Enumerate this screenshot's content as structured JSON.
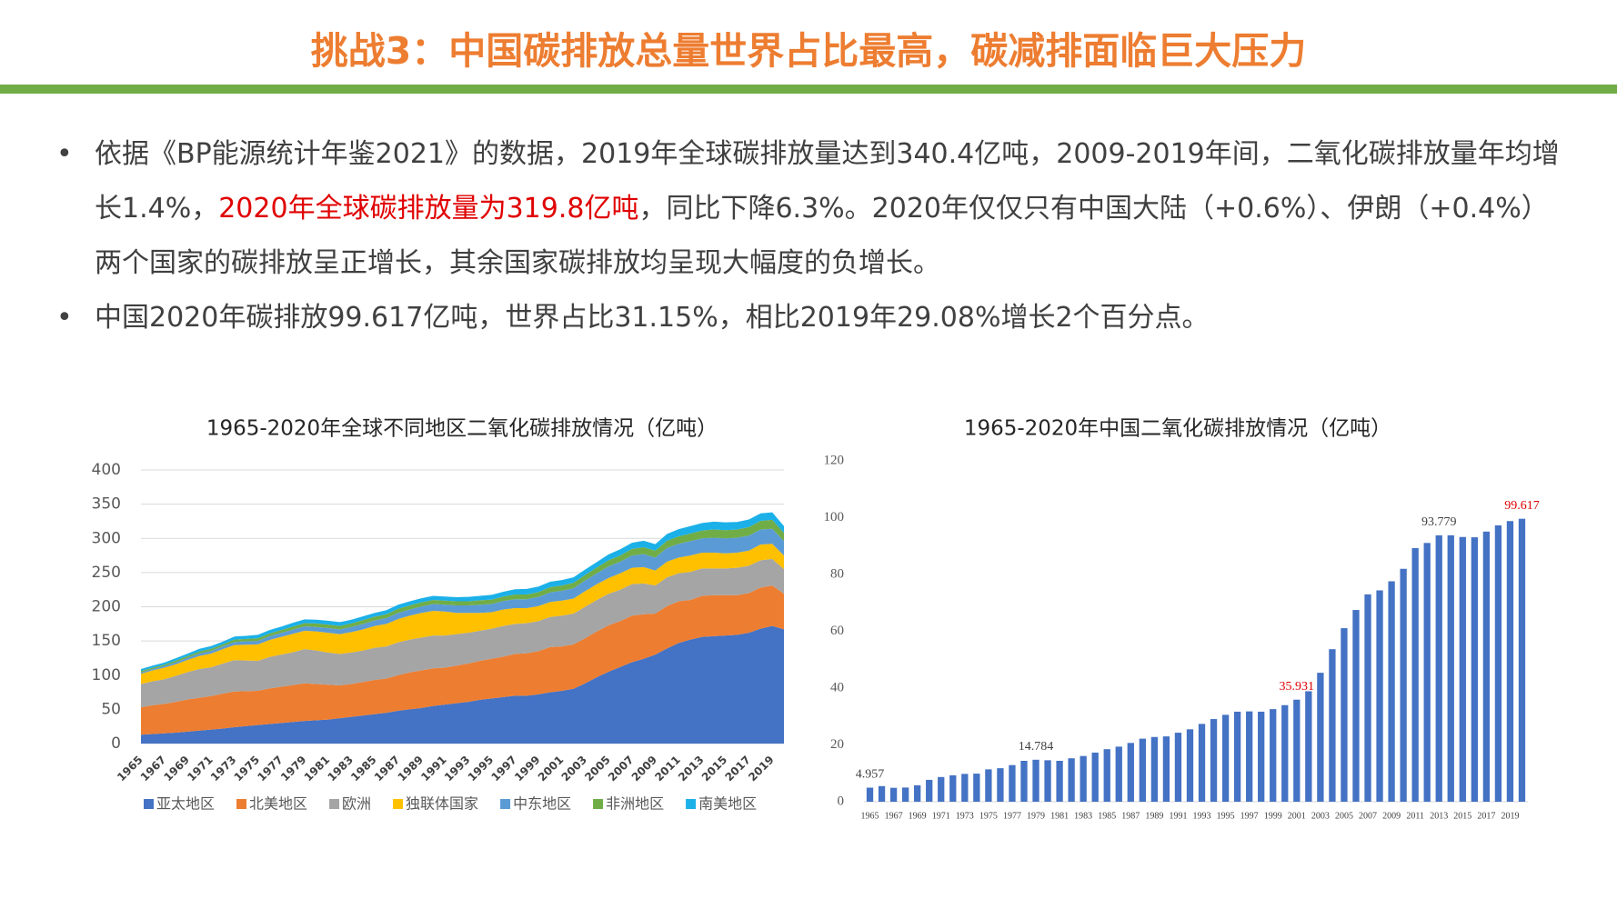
{
  "header": {
    "title": "挑战3：中国碳排放总量世界占比最高，碳减排面临巨大压力"
  },
  "bullets": [
    [
      "依据《BP能源统计年鉴2021》的数据，2019年全球碳排放量达到340.4亿吨，2009-2019年间，二氧化碳排放量年均增长1.4%，",
      "2020年全球碳排放量为319.8亿吨",
      "，同比下降6.3%。2020年仅仅只有中国大陆（+0.6%）、伊朗（+0.4%）两个国家的碳排放呈正增长，其余国家碳排放均呈现大幅度的负增长。"
    ],
    [
      "中国2020年碳排放99.617亿吨，世界占比31.15%，相比2019年29.08%增长2个百分点。"
    ]
  ],
  "chart_data": [
    {
      "type": "area",
      "title": "1965-2020年全球不同地区二氧化碳排放情况（亿吨）",
      "stacked": true,
      "grid": true,
      "legend": "bottom",
      "categories": [
        "1965",
        null,
        "1967",
        null,
        "1969",
        null,
        "1971",
        null,
        "1973",
        null,
        "1975",
        null,
        "1977",
        null,
        "1979",
        null,
        "1981",
        null,
        "1983",
        null,
        "1985",
        null,
        "1987",
        null,
        "1989",
        null,
        "1991",
        null,
        "1993",
        null,
        "1995",
        null,
        "1997",
        null,
        "1999",
        null,
        "2001",
        null,
        "2003",
        null,
        "2005",
        null,
        "2007",
        null,
        "2009",
        null,
        "2011",
        null,
        "2013",
        null,
        "2015",
        null,
        "2017",
        null,
        "2019",
        null
      ],
      "ylim": [
        0,
        400
      ],
      "yticks": [
        0,
        50,
        100,
        150,
        200,
        250,
        300,
        350,
        400
      ],
      "series": [
        {
          "name": "亚太地区",
          "color": "#4472c4",
          "values": [
            13,
            14,
            15,
            16,
            17.5,
            19,
            20.5,
            22,
            24,
            25.5,
            27,
            28.5,
            30,
            31.5,
            33,
            34,
            35,
            37,
            39,
            41,
            43,
            45,
            48,
            50,
            52,
            55,
            57,
            59,
            61,
            64,
            66,
            68,
            70,
            70,
            72,
            75,
            77,
            80,
            88,
            97,
            105,
            112,
            119,
            124,
            130,
            139,
            147,
            152,
            156,
            157,
            158,
            159,
            162,
            168,
            172,
            167
          ]
        },
        {
          "name": "北美地区",
          "color": "#ed7d31",
          "values": [
            40,
            42,
            43,
            45,
            47,
            48,
            49,
            51,
            52,
            51,
            50,
            52,
            53,
            54,
            55,
            53,
            51,
            48,
            48,
            49,
            50,
            50,
            52,
            54,
            55,
            55,
            54,
            55,
            56,
            57,
            58,
            59,
            61,
            62,
            63,
            66,
            65,
            65,
            66,
            67,
            68,
            67,
            68,
            65,
            60,
            62,
            61,
            58,
            60,
            60,
            59,
            58,
            58,
            60,
            59,
            52
          ]
        },
        {
          "name": "欧洲",
          "color": "#a5a5a5",
          "values": [
            34,
            35,
            36,
            38,
            40,
            42,
            42,
            44,
            46,
            45,
            44,
            46,
            47,
            48,
            50,
            49,
            47,
            46,
            46,
            46,
            47,
            47,
            48,
            48,
            48,
            48,
            47,
            46,
            45,
            44,
            44,
            45,
            44,
            44,
            44,
            44,
            45,
            45,
            46,
            46,
            46,
            46,
            46,
            45,
            41,
            42,
            41,
            41,
            40,
            39,
            39,
            40,
            40,
            40,
            39,
            36
          ]
        },
        {
          "name": "独联体国家",
          "color": "#ffc000",
          "values": [
            15,
            16,
            17,
            17,
            18,
            19,
            20,
            21,
            22,
            23,
            24,
            25,
            26,
            27,
            27,
            28,
            29,
            29,
            30,
            31,
            32,
            33,
            34,
            35,
            36,
            36,
            35,
            31,
            29,
            26,
            24,
            24,
            23,
            22,
            22,
            22,
            22,
            22,
            23,
            23,
            23,
            24,
            24,
            24,
            22,
            23,
            23,
            24,
            23,
            23,
            22,
            22,
            22,
            23,
            22,
            20
          ]
        },
        {
          "name": "中东地区",
          "color": "#5b9bd5",
          "values": [
            2,
            2,
            2.5,
            3,
            3,
            3.5,
            4,
            4,
            4.5,
            5,
            5,
            5.5,
            6,
            6,
            6.5,
            6.5,
            7,
            7,
            7.5,
            8,
            8,
            8.5,
            9,
            9,
            9.5,
            10,
            10,
            11,
            11,
            12,
            12,
            12.5,
            13,
            13,
            13.5,
            14,
            14.5,
            15,
            15.5,
            16,
            17,
            17,
            18,
            19,
            19,
            20,
            20,
            21,
            21,
            22,
            22,
            22,
            22,
            22,
            22,
            21
          ]
        },
        {
          "name": "非洲地区",
          "color": "#70ad47",
          "values": [
            2,
            2,
            2,
            2.5,
            2.5,
            3,
            3,
            3,
            3.5,
            3.5,
            4,
            4,
            4,
            4.5,
            4.5,
            5,
            5,
            5,
            5,
            5.5,
            5.5,
            5.5,
            6,
            6,
            6,
            6,
            6,
            6,
            6,
            6.5,
            6.5,
            6.5,
            7,
            7,
            7,
            7.5,
            7.5,
            8,
            8,
            8.5,
            9,
            9,
            9.5,
            10,
            10,
            10.5,
            11,
            11,
            11.5,
            12,
            12,
            12,
            12.5,
            12.5,
            13,
            12
          ]
        },
        {
          "name": "南美地区",
          "color": "#1cb0e8",
          "values": [
            3,
            3,
            3,
            3.5,
            3.5,
            4,
            4,
            4,
            4.5,
            4.5,
            5,
            5,
            5,
            5.5,
            5.5,
            5.5,
            5.5,
            5.5,
            5.5,
            5.5,
            5.5,
            6,
            6,
            6,
            6,
            6,
            6,
            6,
            6.5,
            6.5,
            7,
            7,
            7.5,
            8,
            8,
            8,
            8,
            8,
            8,
            8,
            8.5,
            9,
            9,
            9.5,
            9.5,
            10,
            10.5,
            11,
            11,
            11.5,
            11.5,
            11,
            11,
            11,
            11,
            10
          ]
        }
      ]
    },
    {
      "type": "bar",
      "title": "1965-2020年中国二氧化碳排放情况（亿吨）",
      "color": "#4472c4",
      "grid": false,
      "categories": [
        "1965",
        null,
        "1967",
        null,
        "1969",
        null,
        "1971",
        null,
        "1973",
        null,
        "1975",
        null,
        "1977",
        null,
        "1979",
        null,
        "1981",
        null,
        "1983",
        null,
        "1985",
        null,
        "1987",
        null,
        "1989",
        null,
        "1991",
        null,
        "1993",
        null,
        "1995",
        null,
        "1997",
        null,
        "1999",
        null,
        "2001",
        null,
        "2003",
        null,
        "2005",
        null,
        "2007",
        null,
        "2009",
        null,
        "2011",
        null,
        "2013",
        null,
        "2015",
        null,
        "2017",
        null,
        "2019",
        null
      ],
      "values": [
        4.957,
        5.5,
        4.9,
        5.0,
        5.8,
        7.7,
        8.7,
        9.3,
        9.8,
        9.9,
        11.4,
        11.8,
        12.9,
        14.4,
        14.784,
        14.6,
        14.4,
        15.3,
        16.1,
        17.3,
        18.5,
        19.4,
        20.7,
        22.2,
        22.8,
        23.0,
        24.3,
        25.5,
        27.4,
        29.1,
        30.6,
        31.7,
        31.8,
        31.7,
        32.6,
        34.0,
        35.931,
        38.9,
        45.4,
        53.7,
        61.1,
        67.5,
        73.0,
        74.4,
        77.6,
        82.0,
        89.3,
        91.1,
        93.779,
        93.8,
        93.2,
        93.1,
        95.1,
        97.3,
        98.8,
        99.617
      ],
      "value_labels": [
        "4.957",
        null,
        null,
        null,
        null,
        null,
        null,
        null,
        null,
        null,
        null,
        null,
        null,
        null,
        "14.784",
        null,
        null,
        null,
        null,
        null,
        null,
        null,
        null,
        null,
        null,
        null,
        null,
        null,
        null,
        null,
        null,
        null,
        null,
        null,
        null,
        null,
        "35.931",
        null,
        null,
        null,
        null,
        null,
        null,
        null,
        null,
        null,
        null,
        null,
        "93.779",
        null,
        null,
        null,
        null,
        null,
        null,
        "99.617"
      ],
      "value_label_colors": [
        "#404040",
        null,
        null,
        null,
        null,
        null,
        null,
        null,
        null,
        null,
        null,
        null,
        null,
        null,
        "#404040",
        null,
        null,
        null,
        null,
        null,
        null,
        null,
        null,
        null,
        null,
        null,
        null,
        null,
        null,
        null,
        null,
        null,
        null,
        null,
        null,
        null,
        "#e00000",
        null,
        null,
        null,
        null,
        null,
        null,
        null,
        null,
        null,
        null,
        null,
        "#404040",
        null,
        null,
        null,
        null,
        null,
        null,
        "#e00000"
      ],
      "ylim": [
        0,
        120
      ],
      "yticks": [
        0,
        20,
        40,
        60,
        80,
        100,
        120
      ]
    }
  ]
}
